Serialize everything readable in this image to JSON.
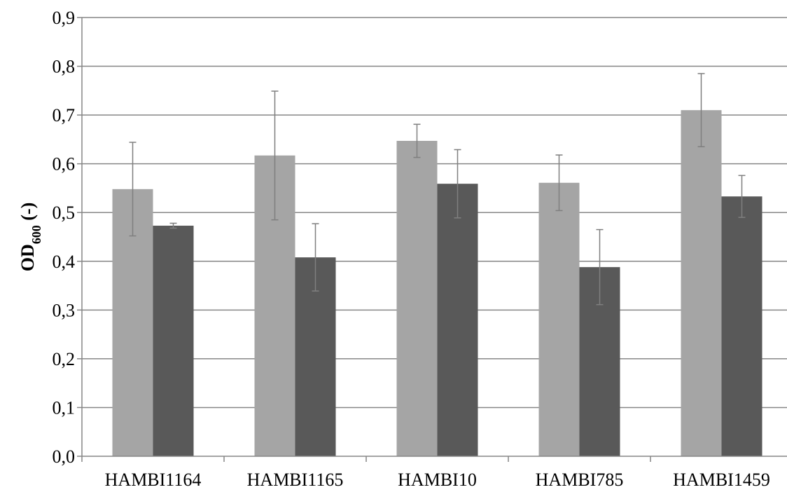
{
  "chart_data": {
    "type": "bar",
    "categories": [
      "HAMBI1164",
      "HAMBI1165",
      "HAMBI10",
      "HAMBI785",
      "HAMBI1459"
    ],
    "series": [
      {
        "values": [
          0.548,
          0.617,
          0.647,
          0.561,
          0.71
        ],
        "errors": [
          0.096,
          0.132,
          0.034,
          0.057,
          0.075
        ],
        "color": "#a5a5a5"
      },
      {
        "values": [
          0.473,
          0.408,
          0.559,
          0.388,
          0.533
        ],
        "errors": [
          0.005,
          0.069,
          0.07,
          0.077,
          0.043
        ],
        "color": "#595959"
      }
    ],
    "ylabel_main": "OD",
    "ylabel_sub": "600",
    "ylabel_suffix": " (-)",
    "ylim": [
      0,
      0.9
    ],
    "yticks": [
      "0,0",
      "0,1",
      "0,2",
      "0,3",
      "0,4",
      "0,5",
      "0,6",
      "0,7",
      "0,8",
      "0,9"
    ],
    "grid": true,
    "gridColor": "#868686",
    "errorBarColor": "#7f7f7f"
  }
}
